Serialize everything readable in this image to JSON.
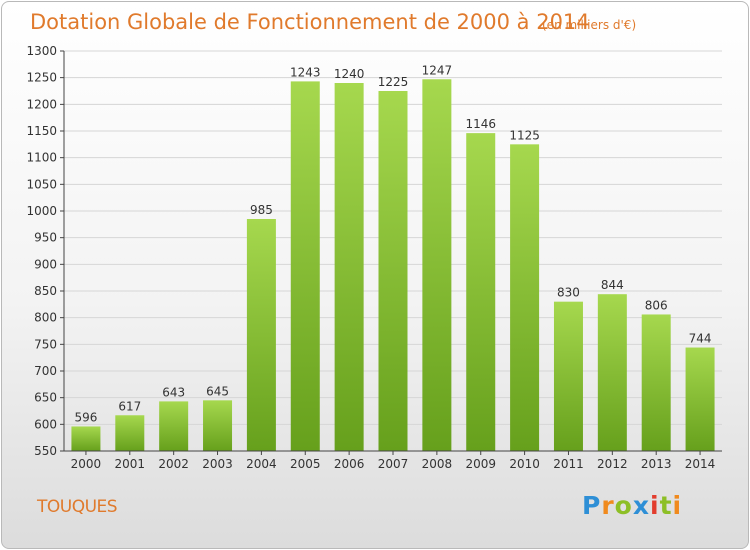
{
  "header": {
    "title": "Dotation Globale de Fonctionnement de 2000 à 2014",
    "subtitle": "(en milliers d'€)"
  },
  "footer": {
    "commune": "TOUQUES",
    "logo_letters": [
      "P",
      "r",
      "o",
      "x",
      "i",
      "t",
      "i"
    ]
  },
  "colors": {
    "title": "#e07a2c",
    "bar_top": "#a6d84e",
    "bar_bottom": "#66a01c",
    "grid": "#d6d6d6",
    "axis": "#444444"
  },
  "chart_data": {
    "type": "bar",
    "title": "Dotation Globale de Fonctionnement de 2000 à 2014",
    "subtitle": "(en milliers d'€)",
    "categories": [
      "2000",
      "2001",
      "2002",
      "2003",
      "2004",
      "2005",
      "2006",
      "2007",
      "2008",
      "2009",
      "2010",
      "2011",
      "2012",
      "2013",
      "2014"
    ],
    "values": [
      596,
      617,
      643,
      645,
      985,
      1243,
      1240,
      1225,
      1247,
      1146,
      1125,
      830,
      844,
      806,
      744
    ],
    "ylim": [
      550,
      1300
    ],
    "ytick_step": 50,
    "xlabel": "",
    "ylabel": "",
    "grid": true,
    "legend": "none"
  }
}
